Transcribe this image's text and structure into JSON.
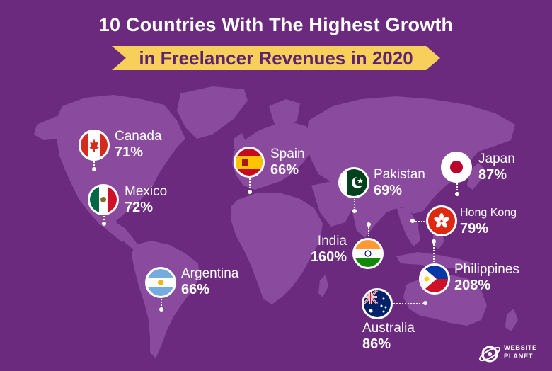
{
  "title": {
    "line1": "10 Countries With The Highest Growth",
    "line2": "in Freelancer Revenues in 2020"
  },
  "colors": {
    "background": "#6b2a7d",
    "land": "#8a4a9d",
    "banner": "#f9cf5b",
    "banner_text": "#5b2470",
    "marker_ring": "#ffffff"
  },
  "countries": [
    {
      "name": "Canada",
      "value": "71%",
      "flag": "canada-flag"
    },
    {
      "name": "Mexico",
      "value": "72%",
      "flag": "mexico-flag"
    },
    {
      "name": "Argentina",
      "value": "66%",
      "flag": "argentina-flag"
    },
    {
      "name": "Spain",
      "value": "66%",
      "flag": "spain-flag"
    },
    {
      "name": "Pakistan",
      "value": "69%",
      "flag": "pakistan-flag"
    },
    {
      "name": "India",
      "value": "160%",
      "flag": "india-flag"
    },
    {
      "name": "Japan",
      "value": "87%",
      "flag": "japan-flag"
    },
    {
      "name": "Hong Kong",
      "value": "79%",
      "flag": "hong-kong-flag"
    },
    {
      "name": "Philippines",
      "value": "208%",
      "flag": "philippines-flag"
    },
    {
      "name": "Australia",
      "value": "86%",
      "flag": "australia-flag"
    }
  ],
  "logo": {
    "line1": "WEBSITE",
    "line2": "PLANET",
    "icon": "planet-icon"
  }
}
